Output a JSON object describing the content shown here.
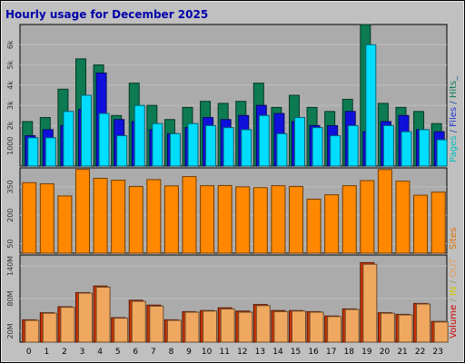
{
  "chart_data": {
    "title": "Hourly usage for December 2025",
    "type": "bar",
    "categories": [
      "0",
      "1",
      "2",
      "3",
      "4",
      "5",
      "6",
      "7",
      "8",
      "9",
      "10",
      "11",
      "12",
      "13",
      "14",
      "15",
      "16",
      "17",
      "18",
      "19",
      "20",
      "21",
      "22",
      "23"
    ],
    "panels": [
      {
        "id": "hits",
        "ylim": [
          0,
          7000
        ],
        "yticks": [
          {
            "value": 1000,
            "label": "1000"
          },
          {
            "value": 2000,
            "label": "2k"
          },
          {
            "value": 3000,
            "label": "3k"
          },
          {
            "value": 4000,
            "label": "4k"
          },
          {
            "value": 5000,
            "label": "5k"
          },
          {
            "value": 6000,
            "label": "6k"
          }
        ],
        "legend": [
          {
            "text": "Pages",
            "color": "#00c0c0"
          },
          {
            "text": " / ",
            "color": "#1a4fa0"
          },
          {
            "text": "Files",
            "color": "#2233cc"
          },
          {
            "text": " / ",
            "color": "#1a4fa0"
          },
          {
            "text": "Hits",
            "color": "#0d7a52"
          },
          {
            "text": "_",
            "color": "#1a4fa0"
          }
        ],
        "series": [
          {
            "name": "Hits",
            "color": "#0d7a52",
            "values": [
              2200,
              2400,
              3800,
              5300,
              5000,
              2500,
              4100,
              3000,
              2300,
              2900,
              3200,
              3100,
              3200,
              4100,
              2900,
              3500,
              2900,
              2700,
              3300,
              7000,
              3100,
              2900,
              2700,
              2100
            ]
          },
          {
            "name": "Files",
            "color": "#1010dd",
            "values": [
              1500,
              1800,
              2000,
              2800,
              4600,
              2300,
              2200,
              1800,
              1600,
              1900,
              2400,
              2300,
              2500,
              3000,
              2600,
              2200,
              2000,
              2000,
              2700,
              1700,
              2200,
              2500,
              1800,
              1700
            ]
          },
          {
            "name": "Pages",
            "color": "#00ddff",
            "values": [
              1400,
              1400,
              2700,
              3500,
              2600,
              1500,
              3000,
              2100,
              1600,
              2100,
              2000,
              1900,
              1800,
              2500,
              1600,
              2400,
              1900,
              1500,
              2000,
              6000,
              2000,
              1700,
              1800,
              1300
            ]
          }
        ]
      },
      {
        "id": "sites",
        "ylim": [
          0,
          450
        ],
        "yticks": [
          {
            "value": 50,
            "label": "50"
          },
          {
            "value": 200,
            "label": "200"
          },
          {
            "value": 350,
            "label": "350"
          }
        ],
        "legend": [
          {
            "text": "Sites",
            "color": "#e07000"
          }
        ],
        "series": [
          {
            "name": "Sites",
            "color": "#ff8800",
            "values": [
              372,
              366,
              302,
              442,
              395,
              385,
              352,
              388,
              355,
              404,
              356,
              357,
              350,
              346,
              356,
              352,
              285,
              308,
              356,
              383,
              441,
              380,
              306,
              322
            ]
          }
        ]
      },
      {
        "id": "volume",
        "ylim": [
          0,
          160
        ],
        "yticks": [
          {
            "value": 20,
            "label": "20M"
          },
          {
            "value": 80,
            "label": "80M"
          },
          {
            "value": 140,
            "label": "140M"
          }
        ],
        "legend": [
          {
            "text": "Volume",
            "color": "#cc0000"
          },
          {
            "text": " / ",
            "color": "#999966"
          },
          {
            "text": "IN",
            "color": "#cccc00"
          },
          {
            "text": " / ",
            "color": "#999966"
          },
          {
            "text": "OUT",
            "color": "#e0a060"
          }
        ],
        "series": [
          {
            "name": "Volume",
            "color": "#cc3300",
            "values": [
              41,
              54,
              65,
              91,
              103,
              45,
              77,
              68,
              41,
              56,
              58,
              63,
              57,
              69,
              58,
              58,
              56,
              48,
              61,
              146,
              54,
              51,
              71,
              38
            ]
          },
          {
            "name": "OUT",
            "color": "#f0a860",
            "values": [
              40,
              53,
              64,
              90,
              101,
              44,
              75,
              66,
              40,
              55,
              57,
              61,
              55,
              67,
              56,
              57,
              55,
              47,
              60,
              143,
              53,
              50,
              70,
              37
            ]
          }
        ]
      }
    ]
  }
}
